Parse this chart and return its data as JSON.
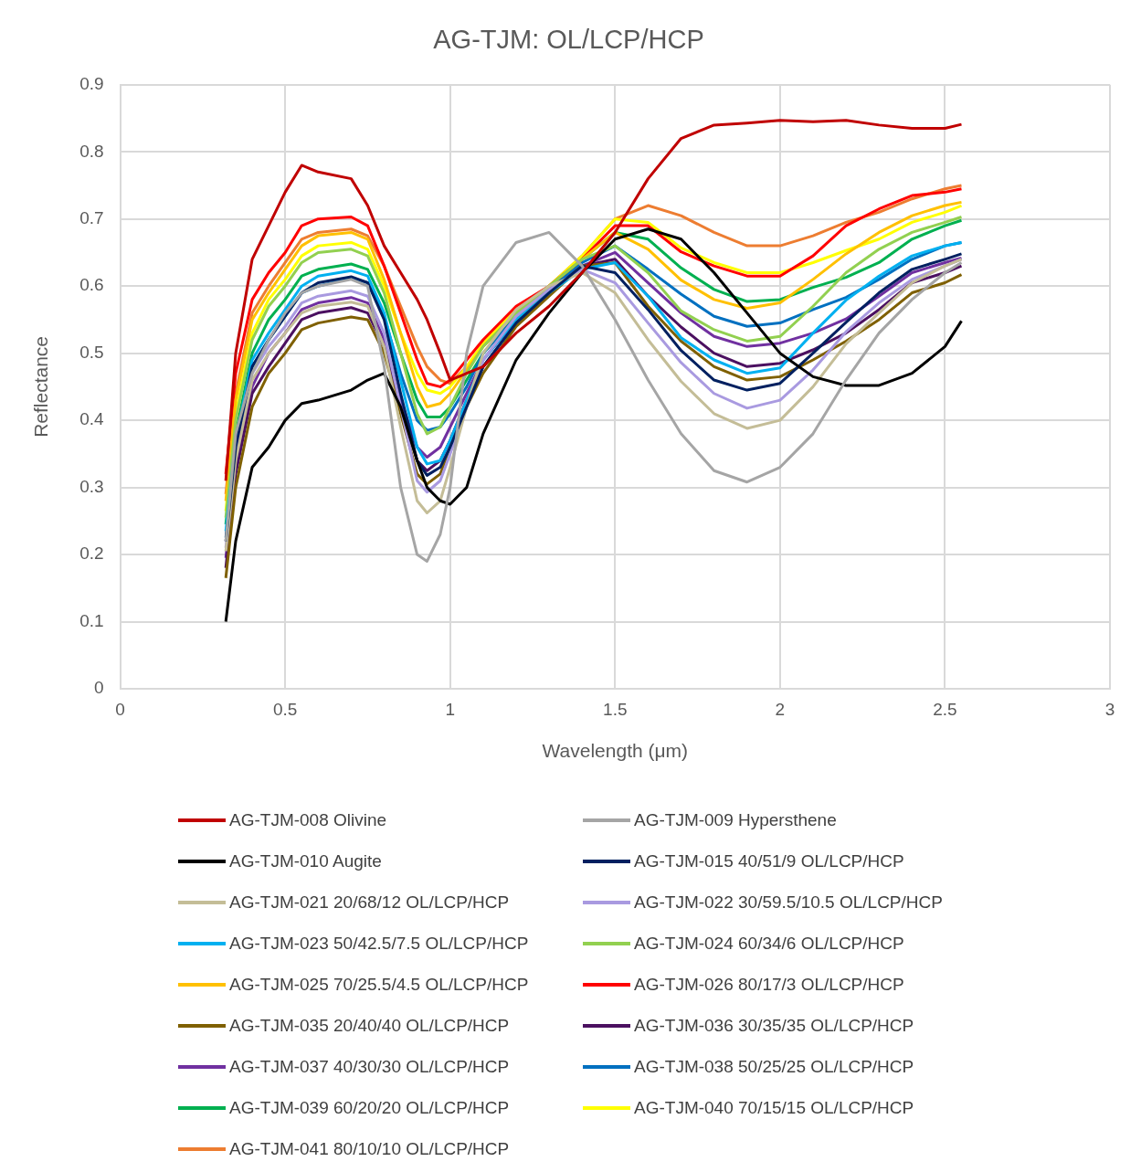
{
  "chart_data": {
    "type": "line",
    "title": "AG-TJM: OL/LCP/HCP",
    "xlabel": "Wavelength (μm)",
    "ylabel": "Reflectance",
    "xlim": [
      0,
      3
    ],
    "xticks": [
      0,
      0.5,
      1,
      1.5,
      2,
      2.5,
      3
    ],
    "ylim": [
      0,
      0.9
    ],
    "yticks": [
      0,
      0.1,
      0.2,
      0.3,
      0.4,
      0.5,
      0.6,
      0.7,
      0.8,
      0.9
    ],
    "grid": true,
    "legend": "bottom",
    "marker": "none",
    "line_style": "solid",
    "x": [
      0.32,
      0.35,
      0.4,
      0.45,
      0.5,
      0.55,
      0.6,
      0.7,
      0.75,
      0.8,
      0.85,
      0.9,
      0.93,
      0.97,
      1.0,
      1.05,
      1.1,
      1.2,
      1.3,
      1.4,
      1.5,
      1.6,
      1.7,
      1.8,
      1.9,
      2.0,
      2.1,
      2.2,
      2.3,
      2.4,
      2.5,
      2.55
    ],
    "series": [
      {
        "name": "AG-TJM-008 Olivine",
        "color": "#c00000",
        "values": [
          0.31,
          0.5,
          0.64,
          0.69,
          0.74,
          0.78,
          0.77,
          0.76,
          0.72,
          0.66,
          0.62,
          0.58,
          0.55,
          0.5,
          0.46,
          0.47,
          0.48,
          0.53,
          0.57,
          0.62,
          0.68,
          0.76,
          0.82,
          0.84,
          0.843,
          0.847,
          0.845,
          0.847,
          0.84,
          0.835,
          0.835,
          0.841
        ]
      },
      {
        "name": "AG-TJM-009 Hypersthene",
        "color": "#a5a5a5",
        "values": [
          0.22,
          0.38,
          0.47,
          0.52,
          0.56,
          0.59,
          0.6,
          0.61,
          0.6,
          0.48,
          0.3,
          0.2,
          0.19,
          0.23,
          0.3,
          0.5,
          0.6,
          0.665,
          0.68,
          0.63,
          0.55,
          0.46,
          0.38,
          0.325,
          0.308,
          0.33,
          0.38,
          0.46,
          0.53,
          0.58,
          0.62,
          0.635
        ]
      },
      {
        "name": "AG-TJM-010 Augite",
        "color": "#000000",
        "values": [
          0.1,
          0.22,
          0.33,
          0.36,
          0.4,
          0.425,
          0.43,
          0.445,
          0.46,
          0.47,
          0.42,
          0.34,
          0.3,
          0.28,
          0.275,
          0.3,
          0.38,
          0.49,
          0.56,
          0.62,
          0.67,
          0.685,
          0.67,
          0.62,
          0.56,
          0.5,
          0.465,
          0.452,
          0.452,
          0.47,
          0.51,
          0.548
        ]
      },
      {
        "name": "AG-TJM-015 40/51/9 OL/LCP/HCP",
        "color": "#002060",
        "values": [
          0.22,
          0.36,
          0.48,
          0.52,
          0.555,
          0.59,
          0.605,
          0.614,
          0.605,
          0.55,
          0.44,
          0.34,
          0.318,
          0.33,
          0.36,
          0.42,
          0.48,
          0.545,
          0.59,
          0.63,
          0.62,
          0.565,
          0.504,
          0.46,
          0.445,
          0.455,
          0.5,
          0.546,
          0.59,
          0.625,
          0.64,
          0.648
        ]
      },
      {
        "name": "AG-TJM-021 20/68/12 OL/LCP/HCP",
        "color": "#c4bd97",
        "values": [
          0.205,
          0.34,
          0.46,
          0.5,
          0.53,
          0.56,
          0.57,
          0.576,
          0.57,
          0.51,
          0.39,
          0.28,
          0.262,
          0.28,
          0.33,
          0.42,
          0.5,
          0.565,
          0.6,
          0.62,
          0.59,
          0.52,
          0.458,
          0.41,
          0.388,
          0.4,
          0.45,
          0.514,
          0.56,
          0.605,
          0.63,
          0.64
        ]
      },
      {
        "name": "AG-TJM-022 30/59.5/10.5 OL/LCP/HCP",
        "color": "#a99ae0",
        "values": [
          0.21,
          0.35,
          0.47,
          0.51,
          0.54,
          0.575,
          0.585,
          0.593,
          0.585,
          0.53,
          0.42,
          0.31,
          0.293,
          0.31,
          0.35,
          0.42,
          0.49,
          0.555,
          0.595,
          0.625,
          0.605,
          0.545,
          0.486,
          0.44,
          0.418,
          0.43,
          0.475,
          0.532,
          0.575,
          0.61,
          0.63,
          0.64
        ]
      },
      {
        "name": "AG-TJM-023 50/42.5/7.5 OL/LCP/HCP",
        "color": "#00b0f0",
        "values": [
          0.235,
          0.37,
          0.49,
          0.53,
          0.565,
          0.6,
          0.615,
          0.623,
          0.615,
          0.56,
          0.46,
          0.36,
          0.335,
          0.34,
          0.37,
          0.43,
          0.49,
          0.55,
          0.59,
          0.625,
          0.635,
          0.585,
          0.523,
          0.49,
          0.47,
          0.478,
          0.53,
          0.579,
          0.615,
          0.645,
          0.66,
          0.665
        ]
      },
      {
        "name": "AG-TJM-024 60/34/6 OL/LCP/HCP",
        "color": "#92d050",
        "values": [
          0.255,
          0.4,
          0.52,
          0.57,
          0.6,
          0.635,
          0.65,
          0.655,
          0.645,
          0.59,
          0.5,
          0.41,
          0.38,
          0.39,
          0.42,
          0.47,
          0.51,
          0.56,
          0.6,
          0.64,
          0.66,
          0.62,
          0.563,
          0.535,
          0.518,
          0.525,
          0.57,
          0.62,
          0.655,
          0.68,
          0.695,
          0.703
        ]
      },
      {
        "name": "AG-TJM-025 70/25.5/4.5 OL/LCP/HCP",
        "color": "#ffc000",
        "values": [
          0.28,
          0.43,
          0.55,
          0.59,
          0.625,
          0.66,
          0.675,
          0.68,
          0.67,
          0.61,
          0.53,
          0.45,
          0.42,
          0.425,
          0.44,
          0.475,
          0.51,
          0.56,
          0.6,
          0.64,
          0.68,
          0.655,
          0.609,
          0.58,
          0.567,
          0.575,
          0.61,
          0.648,
          0.68,
          0.705,
          0.72,
          0.725
        ]
      },
      {
        "name": "AG-TJM-026 80/17/3 OL/LCP/HCP",
        "color": "#ff0000",
        "values": [
          0.32,
          0.47,
          0.58,
          0.62,
          0.65,
          0.69,
          0.7,
          0.703,
          0.69,
          0.63,
          0.56,
          0.49,
          0.455,
          0.45,
          0.46,
          0.49,
          0.52,
          0.57,
          0.6,
          0.64,
          0.69,
          0.69,
          0.651,
          0.63,
          0.615,
          0.615,
          0.645,
          0.69,
          0.715,
          0.735,
          0.74,
          0.745
        ]
      },
      {
        "name": "AG-TJM-035 20/40/40 OL/LCP/HCP",
        "color": "#7f6000",
        "values": [
          0.165,
          0.3,
          0.42,
          0.47,
          0.5,
          0.535,
          0.545,
          0.554,
          0.55,
          0.5,
          0.41,
          0.32,
          0.305,
          0.32,
          0.36,
          0.42,
          0.47,
          0.54,
          0.585,
          0.63,
          0.635,
          0.57,
          0.518,
          0.48,
          0.46,
          0.465,
          0.49,
          0.518,
          0.55,
          0.59,
          0.605,
          0.617
        ]
      },
      {
        "name": "AG-TJM-036 30/35/35 OL/LCP/HCP",
        "color": "#4b1060",
        "values": [
          0.18,
          0.32,
          0.44,
          0.48,
          0.515,
          0.55,
          0.56,
          0.568,
          0.56,
          0.51,
          0.42,
          0.34,
          0.325,
          0.34,
          0.37,
          0.43,
          0.48,
          0.545,
          0.59,
          0.63,
          0.64,
          0.585,
          0.539,
          0.5,
          0.48,
          0.485,
          0.505,
          0.53,
          0.565,
          0.605,
          0.62,
          0.63
        ]
      },
      {
        "name": "AG-TJM-037 40/30/30 OL/LCP/HCP",
        "color": "#7030a0",
        "values": [
          0.195,
          0.33,
          0.45,
          0.5,
          0.53,
          0.565,
          0.575,
          0.583,
          0.575,
          0.52,
          0.43,
          0.36,
          0.345,
          0.36,
          0.39,
          0.44,
          0.49,
          0.55,
          0.59,
          0.63,
          0.65,
          0.605,
          0.56,
          0.525,
          0.51,
          0.515,
          0.53,
          0.551,
          0.585,
          0.62,
          0.635,
          0.642
        ]
      },
      {
        "name": "AG-TJM-038 50/25/25 OL/LCP/HCP",
        "color": "#0070c0",
        "values": [
          0.225,
          0.36,
          0.48,
          0.52,
          0.555,
          0.59,
          0.6,
          0.612,
          0.605,
          0.555,
          0.47,
          0.4,
          0.385,
          0.39,
          0.41,
          0.45,
          0.5,
          0.555,
          0.595,
          0.635,
          0.66,
          0.625,
          0.588,
          0.555,
          0.54,
          0.545,
          0.565,
          0.583,
          0.61,
          0.64,
          0.66,
          0.665
        ]
      },
      {
        "name": "AG-TJM-039 60/20/20 OL/LCP/HCP",
        "color": "#00b050",
        "values": [
          0.245,
          0.38,
          0.5,
          0.55,
          0.58,
          0.615,
          0.625,
          0.633,
          0.625,
          0.575,
          0.5,
          0.43,
          0.405,
          0.405,
          0.42,
          0.46,
          0.5,
          0.555,
          0.595,
          0.64,
          0.68,
          0.67,
          0.627,
          0.595,
          0.577,
          0.58,
          0.598,
          0.613,
          0.635,
          0.67,
          0.69,
          0.698
        ]
      },
      {
        "name": "AG-TJM-040 70/15/15 OL/LCP/HCP",
        "color": "#ffff00",
        "values": [
          0.265,
          0.41,
          0.53,
          0.58,
          0.61,
          0.645,
          0.66,
          0.665,
          0.655,
          0.6,
          0.53,
          0.47,
          0.445,
          0.44,
          0.45,
          0.48,
          0.515,
          0.565,
          0.6,
          0.645,
          0.7,
          0.695,
          0.657,
          0.635,
          0.62,
          0.62,
          0.635,
          0.653,
          0.67,
          0.695,
          0.71,
          0.72
        ]
      },
      {
        "name": "AG-TJM-041 80/10/10 OL/LCP/HCP",
        "color": "#ed7d31",
        "values": [
          0.29,
          0.44,
          0.56,
          0.6,
          0.635,
          0.67,
          0.68,
          0.685,
          0.675,
          0.63,
          0.57,
          0.51,
          0.48,
          0.46,
          0.455,
          0.48,
          0.51,
          0.56,
          0.6,
          0.645,
          0.7,
          0.72,
          0.705,
          0.68,
          0.66,
          0.66,
          0.675,
          0.695,
          0.71,
          0.73,
          0.745,
          0.75
        ]
      }
    ]
  }
}
